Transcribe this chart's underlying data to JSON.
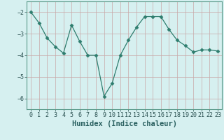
{
  "x": [
    0,
    1,
    2,
    3,
    4,
    5,
    6,
    7,
    8,
    9,
    10,
    11,
    12,
    13,
    14,
    15,
    16,
    17,
    18,
    19,
    20,
    21,
    22,
    23
  ],
  "y": [
    -2.0,
    -2.5,
    -3.2,
    -3.6,
    -3.9,
    -2.6,
    -3.35,
    -4.0,
    -4.0,
    -5.9,
    -5.3,
    -4.0,
    -3.3,
    -2.7,
    -2.2,
    -2.2,
    -2.2,
    -2.8,
    -3.3,
    -3.55,
    -3.85,
    -3.75,
    -3.75,
    -3.8
  ],
  "line_color": "#2e7d6e",
  "marker": "D",
  "marker_size": 2.5,
  "bg_color": "#d6f0f0",
  "grid_color": "#b8d8d8",
  "xlabel": "Humidex (Indice chaleur)",
  "ylim": [
    -6.5,
    -1.5
  ],
  "xlim": [
    -0.5,
    23.5
  ],
  "yticks": [
    -6,
    -5,
    -4,
    -3,
    -2
  ],
  "xticks": [
    0,
    1,
    2,
    3,
    4,
    5,
    6,
    7,
    8,
    9,
    10,
    11,
    12,
    13,
    14,
    15,
    16,
    17,
    18,
    19,
    20,
    21,
    22,
    23
  ],
  "tick_fontsize": 6,
  "label_fontsize": 7.5,
  "spine_color": "#5a9a8a"
}
